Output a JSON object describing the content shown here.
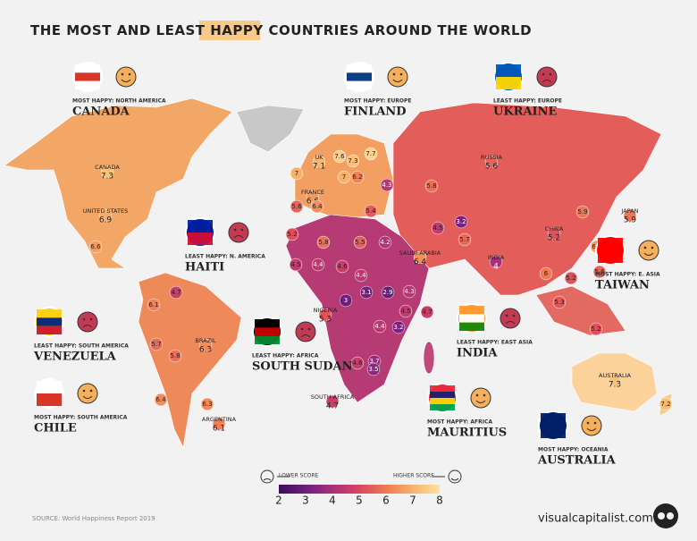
{
  "title": {
    "before": "THE MOST AND LEAST",
    "highlight": "HAPPY",
    "after": "COUNTRIES AROUND THE WORLD"
  },
  "callouts": [
    {
      "caption": "MOST HAPPY: NORTH AMERICA",
      "country": "CANADA"
    },
    {
      "caption": "MOST HAPPY: EUROPE",
      "country": "FINLAND"
    },
    {
      "caption": "LEAST HAPPY: EUROPE",
      "country": "UKRAINE"
    },
    {
      "caption": "LEAST HAPPY: N. AMERICA",
      "country": "HAITI"
    },
    {
      "caption": "LEAST HAPPY: SOUTH AMERICA",
      "country": "VENEZUELA"
    },
    {
      "caption": "MOST HAPPY: SOUTH AMERICA",
      "country": "CHILE"
    },
    {
      "caption": "LEAST HAPPY: AFRICA",
      "country": "SOUTH SUDAN"
    },
    {
      "caption": "LEAST HAPPY: EAST ASIA",
      "country": "INDIA"
    },
    {
      "caption": "MOST HAPPY: E. ASIA",
      "country": "TAIWAN"
    },
    {
      "caption": "MOST HAPPY: AFRICA",
      "country": "MAURITIUS"
    },
    {
      "caption": "MOST HAPPY: OCEANIA",
      "country": "AUSTRALIA"
    }
  ],
  "scores": [
    {
      "name": "CANADA",
      "value": 7.3
    },
    {
      "name": "UNITED STATES",
      "value": 6.9
    },
    {
      "value": 6.6
    },
    {
      "value": 5.2
    },
    {
      "value": 4.7
    },
    {
      "value": 6.1
    },
    {
      "value": 5.7
    },
    {
      "value": 5.8
    },
    {
      "name": "BRAZIL",
      "value": 6.3
    },
    {
      "value": 6.4
    },
    {
      "value": 6.3
    },
    {
      "name": "ARGENTINA",
      "value": 6.1
    },
    {
      "name": "UK",
      "value": 7.1
    },
    {
      "value": 7.0
    },
    {
      "name": "FRANCE",
      "value": 6.6
    },
    {
      "value": 5.6
    },
    {
      "value": 6.4
    },
    {
      "value": 7.6
    },
    {
      "value": 7.3
    },
    {
      "value": 7.7
    },
    {
      "value": 7.0
    },
    {
      "value": 6.2
    },
    {
      "value": 4.3
    },
    {
      "value": 5.4
    },
    {
      "value": 5.8
    },
    {
      "name": "RUSSIA",
      "value": 5.6
    },
    {
      "name": "CHINA",
      "value": 5.2
    },
    {
      "value": 5.9
    },
    {
      "name": "JAPAN",
      "value": 5.9
    },
    {
      "value": 5.8
    },
    {
      "value": 5.5
    },
    {
      "value": 4.2
    },
    {
      "value": 4.5
    },
    {
      "value": 3.2
    },
    {
      "value": 5.7
    },
    {
      "name": "SAUDI ARABIA",
      "value": 6.4
    },
    {
      "name": "INDIA",
      "value": 4.0
    },
    {
      "value": 4.5
    },
    {
      "value": 4.4
    },
    {
      "value": 4.6
    },
    {
      "value": 4.4
    },
    {
      "name": "NIGERIA",
      "value": 5.3
    },
    {
      "value": 3.0
    },
    {
      "value": 3.1
    },
    {
      "value": 2.9
    },
    {
      "value": 4.3
    },
    {
      "value": 4.7
    },
    {
      "value": 4.5
    },
    {
      "value": 4.4
    },
    {
      "value": 3.2
    },
    {
      "value": 4.6
    },
    {
      "value": 3.7
    },
    {
      "value": 3.5
    },
    {
      "name": "SOUTH AFRICA",
      "value": 4.7
    },
    {
      "value": 6.0
    },
    {
      "value": 5.2
    },
    {
      "value": 6.5
    },
    {
      "value": 5.6
    },
    {
      "value": 5.3
    },
    {
      "value": 5.2
    },
    {
      "name": "AUSTRALIA",
      "value": 7.3
    },
    {
      "value": 7.2
    }
  ],
  "legend": {
    "lower": "LOWER SCORE",
    "higher": "HIGHER SCORE",
    "ticks": [
      2,
      3,
      4,
      5,
      6,
      7,
      8
    ],
    "colors": [
      "#3b0f5c",
      "#6e1f7c",
      "#a8307a",
      "#d9465e",
      "#ee7a55",
      "#f7b26a",
      "#fde2a0"
    ]
  },
  "source": "SOURCE: World Happiness Report 2019",
  "brand": "visualcapitalist.com"
}
